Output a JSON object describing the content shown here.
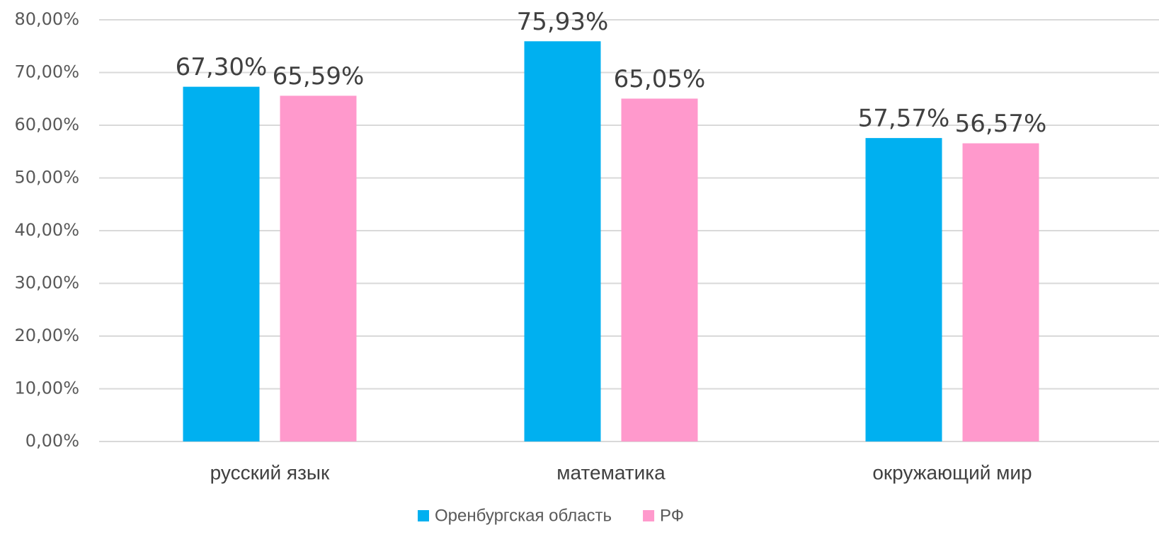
{
  "chart_data": {
    "type": "bar",
    "categories": [
      "русский язык",
      "математика",
      "окружающий мир"
    ],
    "series": [
      {
        "name": "Оренбургская область",
        "color": "#00b0f0",
        "values": [
          67.3,
          75.93,
          57.57
        ],
        "value_labels": [
          "67,30%",
          "75,93%",
          "57,57%"
        ]
      },
      {
        "name": "РФ",
        "color": "#ff99cc",
        "values": [
          65.59,
          65.05,
          56.57
        ],
        "value_labels": [
          "65,59%",
          "65,05%",
          "56,57%"
        ]
      }
    ],
    "ylim": [
      0,
      80
    ],
    "yticks": [
      {
        "value": 0,
        "label": "0,00%"
      },
      {
        "value": 10,
        "label": "10,00%"
      },
      {
        "value": 20,
        "label": "20,00%"
      },
      {
        "value": 30,
        "label": "30,00%"
      },
      {
        "value": 40,
        "label": "40,00%"
      },
      {
        "value": 50,
        "label": "50,00%"
      },
      {
        "value": 60,
        "label": "60,00%"
      },
      {
        "value": 70,
        "label": "70,00%"
      },
      {
        "value": 80,
        "label": "80,00%"
      }
    ],
    "grid": true,
    "legend": "bottom"
  }
}
